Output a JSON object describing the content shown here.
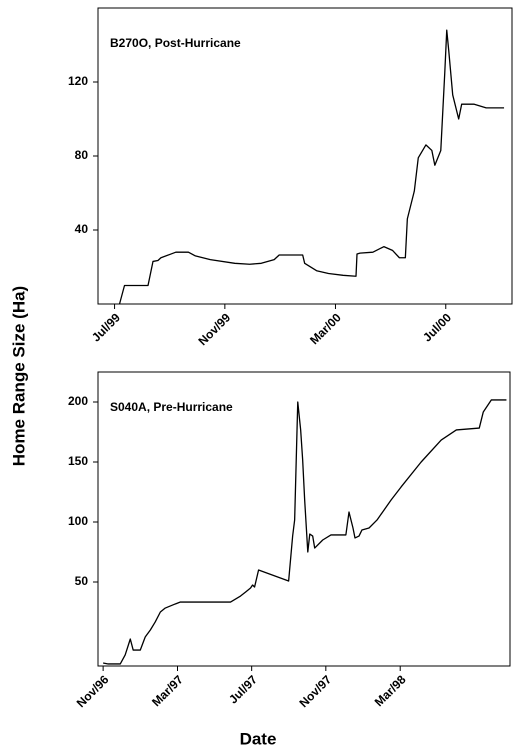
{
  "xlabel": "Date",
  "ylabel": "Home Range Size (Ha)",
  "chart_data": [
    {
      "type": "line",
      "title": "B270O, Post-Hurricane",
      "color": "#000000",
      "x": [
        1999.515,
        1999.53,
        1999.601,
        1999.616,
        1999.631,
        1999.64,
        1999.67,
        1999.685,
        1999.723,
        1999.744,
        1999.789,
        1999.863,
        1999.908,
        1999.943,
        1999.982,
        1999.997,
        2000.068,
        2000.074,
        2000.11,
        2000.146,
        2000.19,
        2000.229,
        2000.232,
        2000.241,
        2000.28,
        2000.313,
        2000.339,
        2000.36,
        2000.378,
        2000.384,
        2000.405,
        2000.417,
        2000.44,
        2000.458,
        2000.467,
        2000.485,
        2000.497,
        2000.503,
        2000.509,
        2000.521,
        2000.539,
        2000.548,
        2000.586,
        2000.622,
        2000.676
      ],
      "values": [
        0,
        10,
        10,
        23,
        23.5,
        25,
        27,
        28,
        28,
        26,
        24,
        22,
        21.5,
        22,
        24,
        26.5,
        26.5,
        22,
        18,
        16.5,
        15.5,
        15,
        27,
        27.5,
        28,
        31,
        29,
        25,
        25,
        46,
        61,
        79,
        86,
        83,
        75,
        83,
        125,
        148,
        137,
        113,
        100,
        108,
        108,
        106,
        106
      ],
      "xlim": [
        1999.45,
        2000.7
      ],
      "xticks": [
        {
          "value": 1999.5,
          "label": "Jul/99"
        },
        {
          "value": 1999.833,
          "label": "Nov/99"
        },
        {
          "value": 2000.167,
          "label": "Mar/00"
        },
        {
          "value": 2000.5,
          "label": "Jul/00"
        }
      ],
      "ylim": [
        0,
        160
      ],
      "yticks": [
        40,
        80,
        120
      ]
    },
    {
      "type": "line",
      "title": "S040A, Pre-Hurricane",
      "color": "#000000",
      "x": [
        1996.833,
        1996.856,
        1996.91,
        1996.932,
        1996.955,
        1996.968,
        1997.0,
        1997.022,
        1997.045,
        1997.067,
        1997.09,
        1997.112,
        1997.157,
        1997.18,
        1997.225,
        1997.405,
        1997.45,
        1997.473,
        1997.495,
        1997.504,
        1997.513,
        1997.531,
        1997.666,
        1997.684,
        1997.693,
        1997.707,
        1997.72,
        1997.729,
        1997.738,
        1997.752,
        1997.761,
        1997.774,
        1997.783,
        1997.819,
        1997.856,
        1997.923,
        1997.937,
        1997.955,
        1997.964,
        1997.982,
        1997.995,
        1998.027,
        1998.063,
        1998.126,
        1998.171,
        1998.261,
        1998.351,
        1998.419,
        1998.522,
        1998.54,
        1998.576,
        1998.644
      ],
      "values": [
        -17.5,
        -18.3,
        -18.3,
        -10.8,
        2.5,
        -6.7,
        -6.7,
        4.2,
        10,
        16.7,
        25,
        28.3,
        31.7,
        33.3,
        33.3,
        33.3,
        38.3,
        41.7,
        45,
        47.5,
        45.8,
        60,
        50.8,
        88.3,
        101.7,
        200,
        176.7,
        151.7,
        118.3,
        75,
        90,
        88.3,
        78.3,
        85,
        89.2,
        89.2,
        108.3,
        95,
        86.7,
        88.3,
        93.3,
        95,
        101.7,
        118.3,
        129.2,
        150,
        168.3,
        176.7,
        178.3,
        191.7,
        201.7,
        201.7
      ],
      "xlim": [
        1996.81,
        1998.66
      ],
      "xticks": [
        {
          "value": 1996.833,
          "label": "Nov/96"
        },
        {
          "value": 1997.167,
          "label": "Mar/97"
        },
        {
          "value": 1997.5,
          "label": "Jul/97"
        },
        {
          "value": 1997.833,
          "label": "Nov/97"
        },
        {
          "value": 1998.167,
          "label": "Mar/98"
        }
      ],
      "ylim": [
        -20,
        225
      ],
      "yticks": [
        50,
        100,
        150,
        200
      ]
    }
  ]
}
